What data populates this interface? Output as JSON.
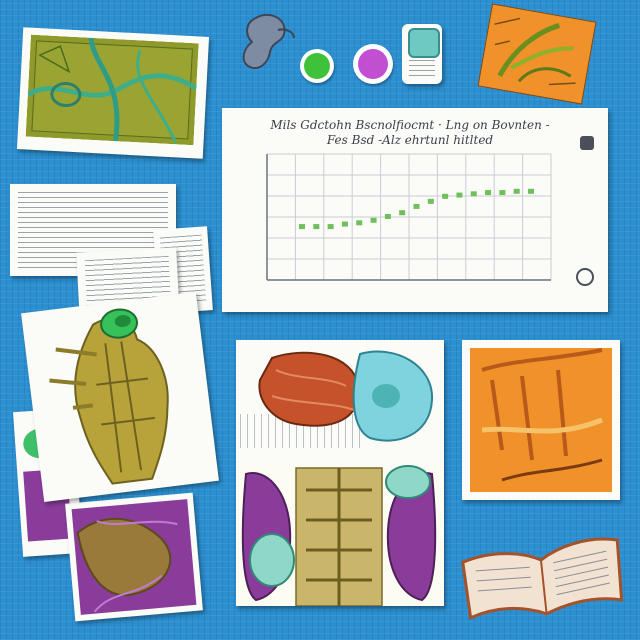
{
  "chart_data": {
    "type": "scatter",
    "title_line1": "Mils Gdctohn Bscnolfiocmt · Lng on Bovnten -",
    "title_line2": "Fes Bsd -Alz ehrtunl hitlted",
    "series": [
      {
        "name": "",
        "y": [
          0.42,
          0.42,
          0.42,
          0.44,
          0.45,
          0.47,
          0.5,
          0.53,
          0.58,
          0.62,
          0.66,
          0.67,
          0.68,
          0.69,
          0.69,
          0.7,
          0.7
        ]
      }
    ],
    "ylim": [
      0,
      1
    ],
    "grid": true,
    "colors": {
      "point": "#6fbf5a"
    }
  },
  "badges": {
    "green_circle_color": "#3fc23a",
    "pink_circle_color": "#c24fd2",
    "pill_icon": "pill-bottle-icon"
  }
}
